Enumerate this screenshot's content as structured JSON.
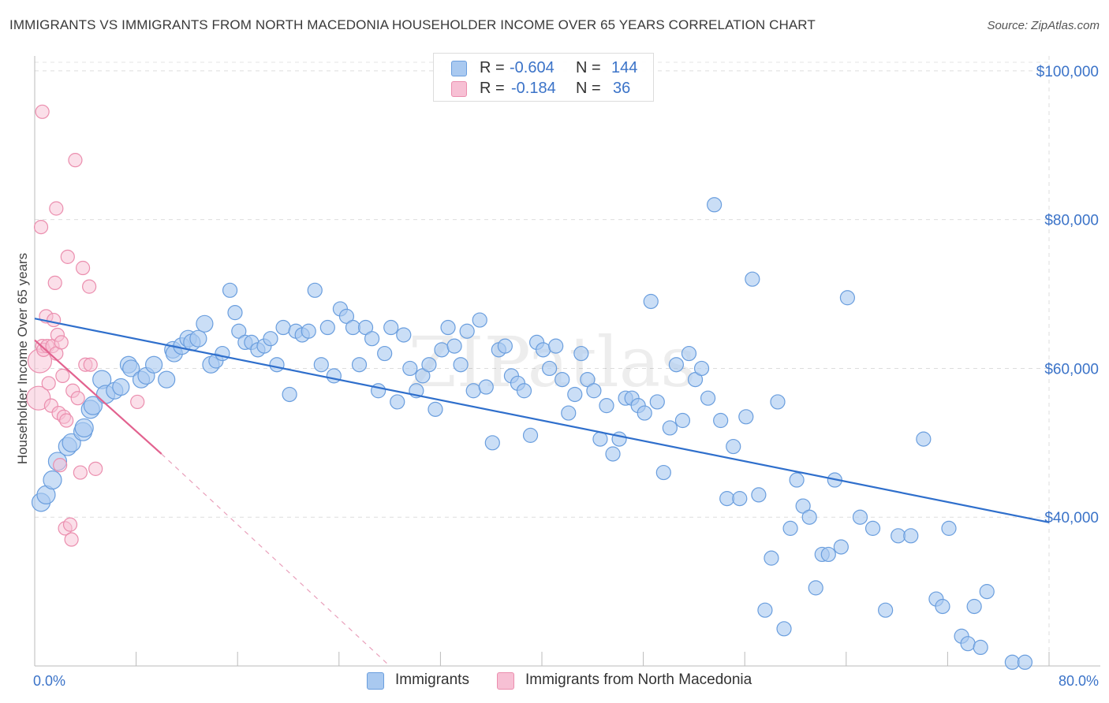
{
  "title": "IMMIGRANTS VS IMMIGRANTS FROM NORTH MACEDONIA HOUSEHOLDER INCOME OVER 65 YEARS CORRELATION CHART",
  "source": "Source: ZipAtlas.com",
  "watermark": "ZIPatlas",
  "legend": {
    "r_label": "R =",
    "n_label": "N =",
    "rows": [
      {
        "r": "-0.604",
        "n": "144"
      },
      {
        "r": "-0.184",
        "n": "36"
      }
    ]
  },
  "colors": {
    "blue_fill": "#a9c9f0",
    "blue_stroke": "#6a9ede",
    "blue_line": "#2f6fcc",
    "pink_fill": "#f7c0d4",
    "pink_stroke": "#eb8eae",
    "pink_line": "#e2628f",
    "tick_label": "#3b73c8"
  },
  "chart_data": {
    "type": "scatter",
    "ylabel": "Householder Income Over 65 years",
    "xlim": [
      0,
      80
    ],
    "ylim": [
      20000,
      102000
    ],
    "x_tick_labels": [
      {
        "value": 0,
        "label": "0.0%"
      },
      {
        "value": 80,
        "label": "80.0%"
      }
    ],
    "y_ticks": [
      {
        "value": 40000,
        "label": "$40,000"
      },
      {
        "value": 60000,
        "label": "$60,000"
      },
      {
        "value": 80000,
        "label": "$80,000"
      },
      {
        "value": 100000,
        "label": "$100,000"
      }
    ],
    "grid": true,
    "series": [
      {
        "name": "Immigrants",
        "trend": {
          "x1": 0,
          "y1": 66700,
          "x2": 80,
          "y2": 39300
        },
        "points": [
          [
            0.5,
            42000
          ],
          [
            0.9,
            43000
          ],
          [
            1.4,
            45000
          ],
          [
            1.8,
            47500
          ],
          [
            2.6,
            49500
          ],
          [
            2.9,
            50000
          ],
          [
            3.8,
            51500
          ],
          [
            3.9,
            52000
          ],
          [
            4.4,
            54500
          ],
          [
            4.6,
            55000
          ],
          [
            5.3,
            58500
          ],
          [
            5.6,
            56500
          ],
          [
            6.3,
            57000
          ],
          [
            6.8,
            57500
          ],
          [
            7.4,
            60500
          ],
          [
            7.6,
            60000
          ],
          [
            8.4,
            58500
          ],
          [
            8.8,
            59000
          ],
          [
            9.4,
            60500
          ],
          [
            10.4,
            58500
          ],
          [
            10.9,
            62500
          ],
          [
            11.0,
            62000
          ],
          [
            11.6,
            63000
          ],
          [
            12.1,
            64000
          ],
          [
            12.4,
            63500
          ],
          [
            12.9,
            64000
          ],
          [
            13.4,
            66000
          ],
          [
            13.9,
            60500
          ],
          [
            14.3,
            61000
          ],
          [
            14.8,
            62000
          ],
          [
            15.4,
            70500
          ],
          [
            15.8,
            67500
          ],
          [
            16.1,
            65000
          ],
          [
            16.6,
            63500
          ],
          [
            17.1,
            63500
          ],
          [
            17.6,
            62500
          ],
          [
            18.1,
            63000
          ],
          [
            18.6,
            64000
          ],
          [
            19.1,
            60500
          ],
          [
            19.6,
            65500
          ],
          [
            20.1,
            56500
          ],
          [
            20.6,
            65000
          ],
          [
            21.1,
            64500
          ],
          [
            21.6,
            65000
          ],
          [
            22.1,
            70500
          ],
          [
            22.6,
            60500
          ],
          [
            23.1,
            65500
          ],
          [
            23.6,
            59000
          ],
          [
            24.1,
            68000
          ],
          [
            24.6,
            67000
          ],
          [
            25.1,
            65500
          ],
          [
            25.6,
            60500
          ],
          [
            26.1,
            65500
          ],
          [
            26.6,
            64000
          ],
          [
            27.1,
            57000
          ],
          [
            27.6,
            62000
          ],
          [
            28.1,
            65500
          ],
          [
            28.6,
            55500
          ],
          [
            29.1,
            64500
          ],
          [
            29.6,
            60000
          ],
          [
            30.1,
            57000
          ],
          [
            30.6,
            59000
          ],
          [
            31.1,
            60500
          ],
          [
            31.6,
            54500
          ],
          [
            32.1,
            62500
          ],
          [
            32.6,
            65500
          ],
          [
            33.1,
            63000
          ],
          [
            33.6,
            60500
          ],
          [
            34.1,
            65000
          ],
          [
            34.6,
            57000
          ],
          [
            35.1,
            66500
          ],
          [
            35.6,
            57500
          ],
          [
            36.1,
            50000
          ],
          [
            36.6,
            62500
          ],
          [
            37.1,
            63000
          ],
          [
            37.6,
            59000
          ],
          [
            38.1,
            58000
          ],
          [
            38.6,
            57000
          ],
          [
            39.1,
            51000
          ],
          [
            39.6,
            63500
          ],
          [
            40.1,
            62500
          ],
          [
            40.6,
            60000
          ],
          [
            41.1,
            63000
          ],
          [
            41.6,
            58500
          ],
          [
            42.1,
            54000
          ],
          [
            42.6,
            56500
          ],
          [
            43.1,
            62000
          ],
          [
            43.6,
            58500
          ],
          [
            44.1,
            57000
          ],
          [
            44.6,
            50500
          ],
          [
            45.1,
            55000
          ],
          [
            45.6,
            48500
          ],
          [
            46.1,
            50500
          ],
          [
            46.6,
            56000
          ],
          [
            47.1,
            56000
          ],
          [
            47.6,
            55000
          ],
          [
            48.1,
            54000
          ],
          [
            48.6,
            69000
          ],
          [
            49.1,
            55500
          ],
          [
            49.6,
            46000
          ],
          [
            50.1,
            52000
          ],
          [
            50.6,
            60500
          ],
          [
            51.1,
            53000
          ],
          [
            51.6,
            62000
          ],
          [
            52.1,
            58500
          ],
          [
            52.6,
            60000
          ],
          [
            53.1,
            56000
          ],
          [
            53.6,
            82000
          ],
          [
            54.1,
            53000
          ],
          [
            54.6,
            42500
          ],
          [
            55.1,
            49500
          ],
          [
            55.6,
            42500
          ],
          [
            56.1,
            53500
          ],
          [
            56.6,
            72000
          ],
          [
            57.1,
            43000
          ],
          [
            57.6,
            27500
          ],
          [
            58.1,
            34500
          ],
          [
            58.6,
            55500
          ],
          [
            59.1,
            25000
          ],
          [
            59.6,
            38500
          ],
          [
            60.1,
            45000
          ],
          [
            60.6,
            41500
          ],
          [
            61.1,
            40000
          ],
          [
            61.6,
            30500
          ],
          [
            62.1,
            35000
          ],
          [
            62.6,
            35000
          ],
          [
            63.1,
            45000
          ],
          [
            63.6,
            36000
          ],
          [
            64.1,
            69500
          ],
          [
            65.1,
            40000
          ],
          [
            66.1,
            38500
          ],
          [
            67.1,
            27500
          ],
          [
            68.1,
            37500
          ],
          [
            69.1,
            37500
          ],
          [
            70.1,
            50500
          ],
          [
            71.1,
            29000
          ],
          [
            71.6,
            28000
          ],
          [
            72.1,
            38500
          ],
          [
            73.1,
            24000
          ],
          [
            73.6,
            23000
          ],
          [
            74.1,
            28000
          ],
          [
            74.6,
            22500
          ],
          [
            75.1,
            30000
          ],
          [
            77.1,
            20500
          ],
          [
            78.1,
            20500
          ]
        ]
      },
      {
        "name": "Immigrants from North Macedonia",
        "trend": {
          "x1": 0,
          "y1": 63800,
          "x2": 10,
          "y2": 48500
        },
        "trend_extension": {
          "x2": 28,
          "y2": 20000
        },
        "points": [
          [
            0.3,
            56000
          ],
          [
            0.4,
            61000
          ],
          [
            0.6,
            63000
          ],
          [
            0.7,
            62500
          ],
          [
            0.5,
            79000
          ],
          [
            0.6,
            94500
          ],
          [
            0.9,
            67000
          ],
          [
            1.0,
            63000
          ],
          [
            1.1,
            58000
          ],
          [
            1.3,
            55000
          ],
          [
            1.4,
            63000
          ],
          [
            1.5,
            66500
          ],
          [
            1.6,
            71500
          ],
          [
            1.7,
            81500
          ],
          [
            1.7,
            62000
          ],
          [
            1.8,
            64500
          ],
          [
            1.9,
            54000
          ],
          [
            2.0,
            47000
          ],
          [
            2.1,
            63500
          ],
          [
            2.2,
            59000
          ],
          [
            2.3,
            53500
          ],
          [
            2.4,
            38500
          ],
          [
            2.5,
            53000
          ],
          [
            2.6,
            75000
          ],
          [
            2.8,
            39000
          ],
          [
            2.9,
            37000
          ],
          [
            3.0,
            57000
          ],
          [
            3.2,
            88000
          ],
          [
            3.4,
            56000
          ],
          [
            3.6,
            46000
          ],
          [
            3.8,
            73500
          ],
          [
            4.0,
            60500
          ],
          [
            4.3,
            71000
          ],
          [
            4.4,
            60500
          ],
          [
            4.8,
            46500
          ],
          [
            8.1,
            55500
          ]
        ]
      }
    ]
  },
  "bottom_legend": [
    "Immigrants",
    "Immigrants from North Macedonia"
  ]
}
